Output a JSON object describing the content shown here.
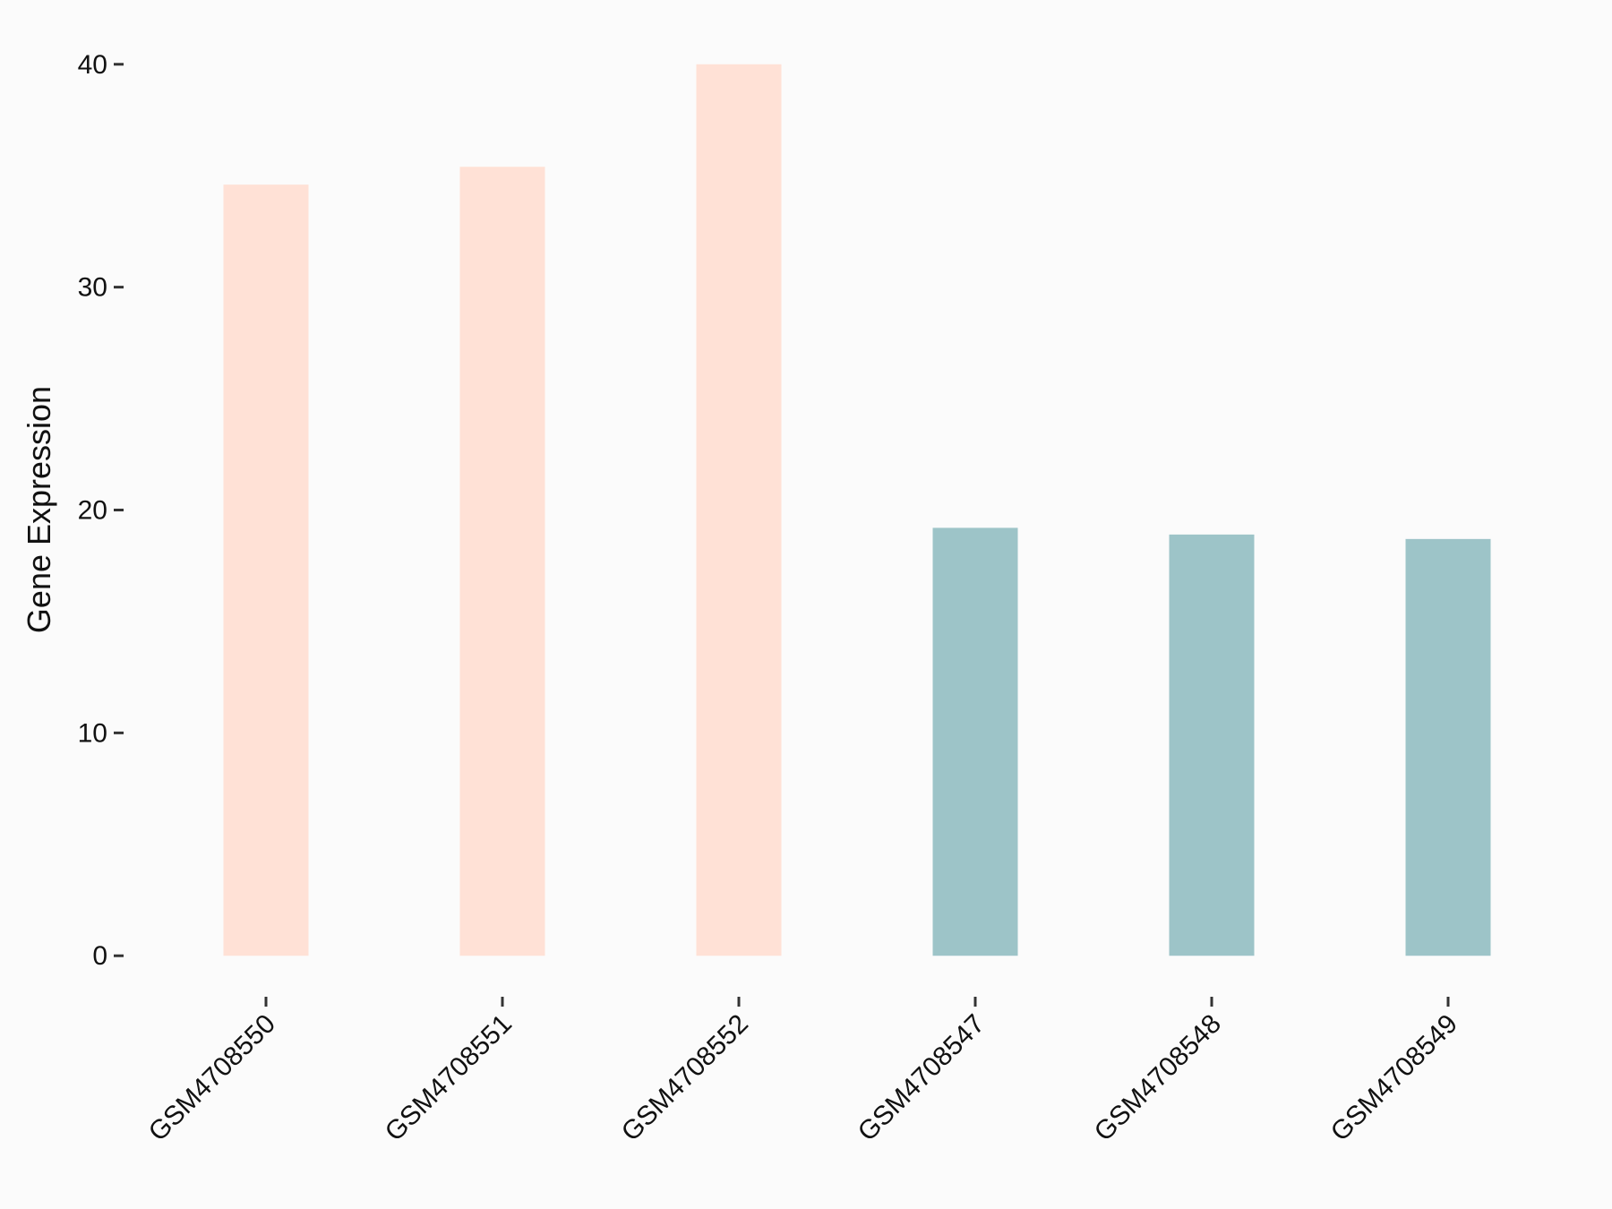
{
  "chart_data": {
    "type": "bar",
    "y_label": "Gene Expression",
    "categories": [
      "GSM4708550",
      "GSM4708551",
      "GSM4708552",
      "GSM4708547",
      "GSM4708548",
      "GSM4708549"
    ],
    "values": [
      34.6,
      35.4,
      40.0,
      19.2,
      18.9,
      18.7
    ],
    "colors": [
      "#ffe1d6",
      "#ffe1d6",
      "#ffe1d6",
      "#9dc4c8",
      "#9dc4c8",
      "#9dc4c8"
    ],
    "ylim": [
      -2,
      42
    ],
    "yticks": [
      0,
      10,
      20,
      30,
      40
    ],
    "grid": false
  }
}
